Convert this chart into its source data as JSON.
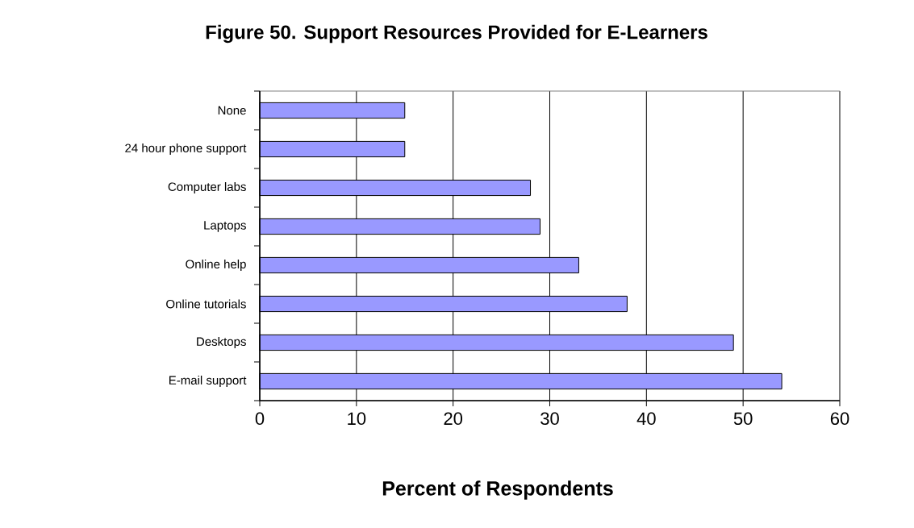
{
  "chart_data": {
    "type": "bar",
    "orientation": "horizontal",
    "title": "Figure 50. Support Resources Provided for E-Learners",
    "xlabel": "Percent of Respondents",
    "categories": [
      "None",
      "24 hour phone support",
      "Computer labs",
      "Laptops",
      "Online help",
      "Online tutorials",
      "Desktops",
      "E-mail support"
    ],
    "values": [
      15,
      15,
      28,
      29,
      33,
      38,
      49,
      54
    ],
    "color": "#9999ff",
    "xlim": [
      0,
      60
    ],
    "xticks": [
      0,
      10,
      20,
      30,
      40,
      50,
      60
    ],
    "grid": "x"
  }
}
